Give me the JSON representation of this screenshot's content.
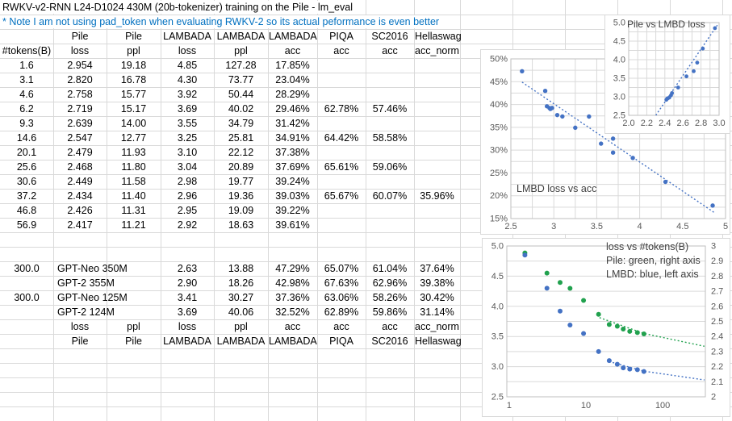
{
  "sheet": {
    "title": "RWKV-v2-RNN L24-D1024 430M (20b-tokenizer) training on the Pile - lm_eval",
    "note": "* Note I am not using pad_token when evaluating RWKV-2 so its actual peformance is even better",
    "note_color": "#0070C0",
    "header_row1": [
      "",
      "Pile",
      "Pile",
      "LAMBADA",
      "LAMBADA",
      "LAMBADA",
      "PIQA",
      "SC2016",
      "Hellaswag"
    ],
    "header_row2": [
      "#tokens(B)",
      "loss",
      "ppl",
      "loss",
      "ppl",
      "acc",
      "acc",
      "acc",
      "acc_norm"
    ],
    "data_rows": [
      [
        "1.6",
        "2.954",
        "19.18",
        "4.85",
        "127.28",
        "17.85%",
        "",
        "",
        ""
      ],
      [
        "3.1",
        "2.820",
        "16.78",
        "4.30",
        "73.77",
        "23.04%",
        "",
        "",
        ""
      ],
      [
        "4.6",
        "2.758",
        "15.77",
        "3.92",
        "50.44",
        "28.29%",
        "",
        "",
        ""
      ],
      [
        "6.2",
        "2.719",
        "15.17",
        "3.69",
        "40.02",
        "29.46%",
        "62.78%",
        "57.46%",
        ""
      ],
      [
        "9.3",
        "2.639",
        "14.00",
        "3.55",
        "34.79",
        "31.42%",
        "",
        "",
        ""
      ],
      [
        "14.6",
        "2.547",
        "12.77",
        "3.25",
        "25.81",
        "34.91%",
        "64.42%",
        "58.58%",
        ""
      ],
      [
        "20.1",
        "2.479",
        "11.93",
        "3.10",
        "22.12",
        "37.38%",
        "",
        "",
        ""
      ],
      [
        "25.6",
        "2.468",
        "11.80",
        "3.04",
        "20.89",
        "37.69%",
        "65.61%",
        "59.06%",
        ""
      ],
      [
        "30.6",
        "2.449",
        "11.58",
        "2.98",
        "19.77",
        "39.24%",
        "",
        "",
        ""
      ],
      [
        "37.2",
        "2.434",
        "11.40",
        "2.96",
        "19.36",
        "39.03%",
        "65.67%",
        "60.07%",
        "35.96%"
      ],
      [
        "46.8",
        "2.426",
        "11.31",
        "2.95",
        "19.09",
        "39.22%",
        "",
        "",
        ""
      ],
      [
        "56.9",
        "2.417",
        "11.21",
        "2.92",
        "18.63",
        "39.61%",
        "",
        "",
        ""
      ]
    ],
    "baseline_rows": [
      [
        "300.0",
        "GPT-Neo 350M",
        "",
        "2.63",
        "13.88",
        "47.29%",
        "65.07%",
        "61.04%",
        "37.64%"
      ],
      [
        "",
        "GPT-2 355M",
        "",
        "2.90",
        "18.26",
        "42.98%",
        "67.63%",
        "62.96%",
        "39.38%"
      ],
      [
        "300.0",
        "GPT-Neo 125M",
        "",
        "3.41",
        "30.27",
        "37.36%",
        "63.06%",
        "58.26%",
        "30.42%"
      ],
      [
        "",
        "GPT-2 124M",
        "",
        "3.69",
        "40.06",
        "32.52%",
        "62.89%",
        "59.86%",
        "31.14%"
      ]
    ],
    "footer_row1": [
      "",
      "loss",
      "ppl",
      "loss",
      "ppl",
      "acc",
      "acc",
      "acc",
      "acc_norm"
    ],
    "footer_row2": [
      "",
      "Pile",
      "Pile",
      "LAMBADA",
      "LAMBADA",
      "LAMBADA",
      "PIQA",
      "SC2016",
      "Hellaswag"
    ]
  },
  "chart_data": [
    {
      "id": "pile_vs_lmbd_loss",
      "type": "scatter",
      "title": "Pile vs LMBD loss",
      "x": [
        2.954,
        2.82,
        2.758,
        2.719,
        2.639,
        2.547,
        2.479,
        2.468,
        2.449,
        2.434,
        2.426,
        2.417
      ],
      "y": [
        4.85,
        4.3,
        3.92,
        3.69,
        3.55,
        3.25,
        3.1,
        3.04,
        2.98,
        2.96,
        2.95,
        2.92
      ],
      "xlim": [
        2.0,
        3.0
      ],
      "ylim": [
        2.5,
        5.0
      ],
      "xticks": [
        2.0,
        2.2,
        2.4,
        2.6,
        2.8,
        3.0
      ],
      "xtick_labels": [
        "2.0",
        "2.2",
        "2.4",
        "2.6",
        "2.8",
        "3.0"
      ],
      "yticks": [
        2.5,
        3.0,
        3.5,
        4.0,
        4.5,
        5.0
      ],
      "ytick_labels": [
        "2.5",
        "3.0",
        "3.5",
        "4.0",
        "4.5",
        "5.0"
      ],
      "grid": true,
      "grid_minor_x": 0.1,
      "grid_minor_y": 0.25,
      "point_color": "#4472C4",
      "trend_color": "#4472C4",
      "trend": [
        [
          2.3,
          2.5
        ],
        [
          2.98,
          4.93
        ]
      ]
    },
    {
      "id": "lmbd_loss_vs_acc",
      "type": "scatter",
      "annotation": "LMBD loss vs acc",
      "x": [
        4.85,
        4.3,
        3.92,
        3.69,
        3.55,
        3.25,
        3.1,
        3.04,
        2.98,
        2.96,
        2.95,
        2.92,
        2.63,
        2.9,
        3.41,
        3.69
      ],
      "y": [
        17.85,
        23.04,
        28.29,
        29.46,
        31.42,
        34.91,
        37.38,
        37.69,
        39.24,
        39.03,
        39.22,
        39.61,
        47.29,
        42.98,
        37.36,
        32.52
      ],
      "xlim": [
        2.5,
        5.0
      ],
      "ylim": [
        15,
        50
      ],
      "xticks": [
        2.5,
        3.0,
        3.5,
        4.0,
        4.5,
        5.0
      ],
      "xtick_labels": [
        "2.5",
        "3",
        "3.5",
        "4",
        "4.5",
        "5"
      ],
      "yticks": [
        15,
        20,
        25,
        30,
        35,
        40,
        45,
        50
      ],
      "ytick_labels": [
        "15%",
        "20%",
        "25%",
        "30%",
        "35%",
        "40%",
        "45%",
        "50%"
      ],
      "grid": true,
      "grid_minor_x": 0.25,
      "grid_minor_y": 2.5,
      "point_color": "#4472C4",
      "trend_color": "#4472C4",
      "trend": [
        [
          2.63,
          44.9
        ],
        [
          4.87,
          16.3
        ]
      ]
    },
    {
      "id": "loss_vs_tokens",
      "type": "scatter",
      "logx": true,
      "title_lines": [
        "loss vs #tokens(B)",
        "Pile: green, right axis",
        "LMBD: blue, left axis"
      ],
      "x": [
        1.6,
        3.1,
        4.6,
        6.2,
        9.3,
        14.6,
        20.1,
        25.6,
        30.6,
        37.2,
        46.8,
        56.9
      ],
      "series": [
        {
          "name": "Pile",
          "axis": "right",
          "color": "#21A14E",
          "values": [
            2.954,
            2.82,
            2.758,
            2.719,
            2.639,
            2.547,
            2.479,
            2.468,
            2.449,
            2.434,
            2.426,
            2.417
          ],
          "trend": [
            [
              15,
              2.525
            ],
            [
              57,
              2.42
            ],
            [
              350,
              2.335
            ]
          ]
        },
        {
          "name": "LMBD",
          "axis": "left",
          "color": "#4472C4",
          "values": [
            4.85,
            4.3,
            3.92,
            3.69,
            3.55,
            3.25,
            3.1,
            3.04,
            2.98,
            2.96,
            2.95,
            2.92
          ],
          "trend": [
            [
              20,
              3.085
            ],
            [
              57,
              2.925
            ],
            [
              350,
              2.78
            ]
          ]
        }
      ],
      "xlim": [
        0.93,
        360
      ],
      "xticks": [
        1,
        10,
        100
      ],
      "xtick_labels": [
        "1",
        "10",
        "100"
      ],
      "ylim_left": [
        2.5,
        5.0
      ],
      "yticks_left": [
        2.5,
        3.0,
        3.5,
        4.0,
        4.5,
        5.0
      ],
      "ytick_labels_left": [
        "2.5",
        "3.0",
        "3.5",
        "4.0",
        "4.5",
        "5.0"
      ],
      "ylim_right": [
        2.0,
        3.0
      ],
      "yticks_right": [
        2.0,
        2.1,
        2.2,
        2.3,
        2.4,
        2.5,
        2.6,
        2.7,
        2.8,
        2.9,
        3.0
      ],
      "ytick_labels_right": [
        "2",
        "2.1",
        "2.2",
        "2.3",
        "2.4",
        "2.5",
        "2.6",
        "2.7",
        "2.8",
        "2.9",
        "3"
      ],
      "grid": true,
      "grid_minor_y_right": 0.1
    }
  ]
}
